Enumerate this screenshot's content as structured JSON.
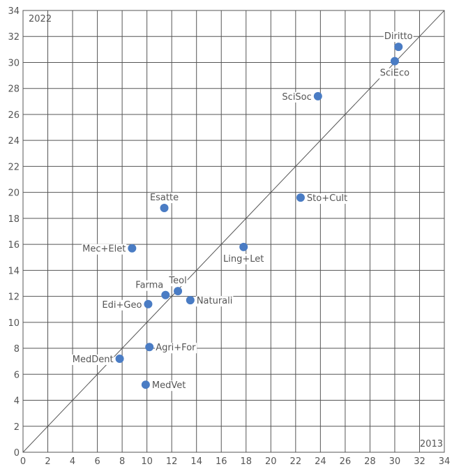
{
  "chart_data": {
    "type": "scatter",
    "title": "",
    "xlabel": "",
    "ylabel": "",
    "xlim": [
      0,
      34
    ],
    "ylim": [
      0,
      34
    ],
    "x_ticks": [
      0,
      2,
      4,
      6,
      8,
      10,
      12,
      14,
      16,
      18,
      20,
      22,
      24,
      26,
      28,
      30,
      32,
      34
    ],
    "y_ticks": [
      0,
      2,
      4,
      6,
      8,
      10,
      12,
      14,
      16,
      18,
      20,
      22,
      24,
      26,
      28,
      30,
      32,
      34
    ],
    "grid": true,
    "x_corner_label": "2013",
    "y_corner_label": "2022",
    "reference_line": "y = x",
    "marker_color": "#4a7cc4",
    "points": [
      {
        "label": "Diritto",
        "x": 30.3,
        "y": 31.2,
        "label_pos": "above"
      },
      {
        "label": "SciEco",
        "x": 30.0,
        "y": 30.1,
        "label_pos": "below"
      },
      {
        "label": "SciSoc",
        "x": 23.8,
        "y": 27.4,
        "label_pos": "left"
      },
      {
        "label": "Sto+Cult",
        "x": 22.4,
        "y": 19.6,
        "label_pos": "right"
      },
      {
        "label": "Esatte",
        "x": 11.4,
        "y": 18.8,
        "label_pos": "above"
      },
      {
        "label": "Ling+Let",
        "x": 17.8,
        "y": 15.8,
        "label_pos": "below"
      },
      {
        "label": "Mec+Elet",
        "x": 8.8,
        "y": 15.7,
        "label_pos": "left"
      },
      {
        "label": "Teol",
        "x": 12.5,
        "y": 12.4,
        "label_pos": "above"
      },
      {
        "label": "Farma",
        "x": 11.5,
        "y": 12.1,
        "label_pos": "above-left"
      },
      {
        "label": "Naturali",
        "x": 13.5,
        "y": 11.7,
        "label_pos": "right"
      },
      {
        "label": "Edi+Geo",
        "x": 10.1,
        "y": 11.4,
        "label_pos": "left"
      },
      {
        "label": "Agri+For",
        "x": 10.2,
        "y": 8.1,
        "label_pos": "right"
      },
      {
        "label": "MedDent",
        "x": 7.8,
        "y": 7.2,
        "label_pos": "left"
      },
      {
        "label": "MedVet",
        "x": 9.9,
        "y": 5.2,
        "label_pos": "right"
      }
    ]
  }
}
